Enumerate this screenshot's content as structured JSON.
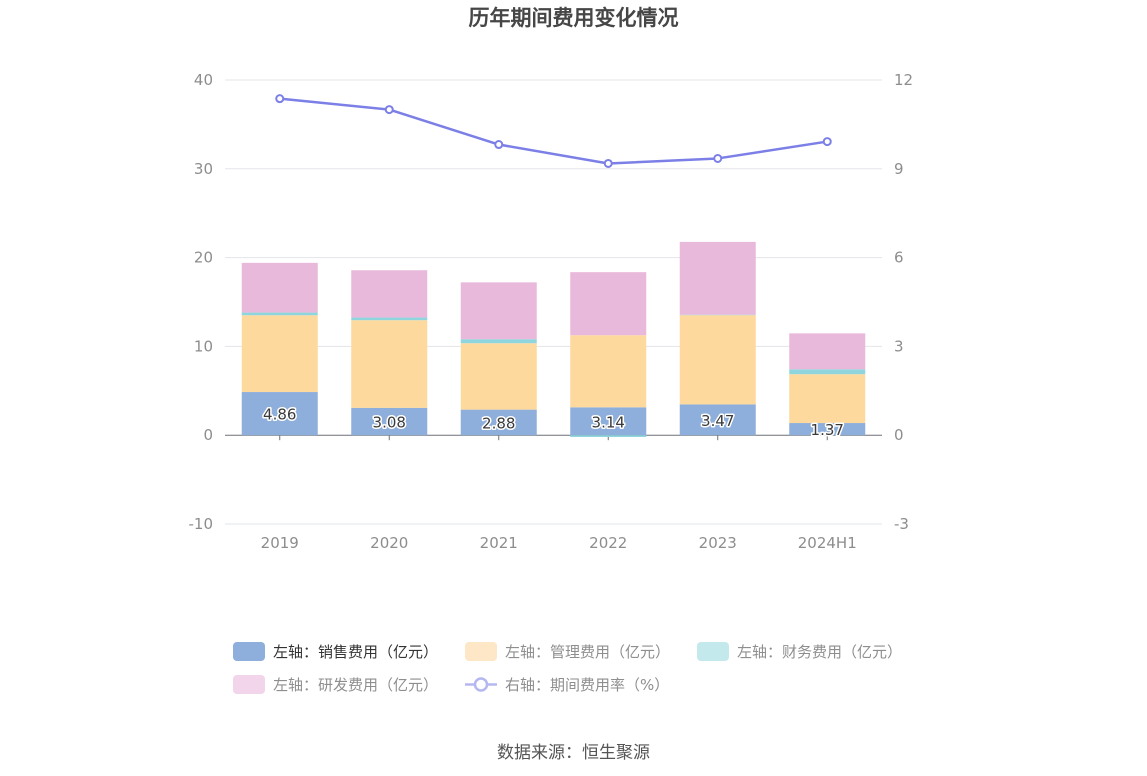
{
  "chart_data": {
    "type": "bar",
    "title": "历年期间费用变化情况",
    "categories": [
      "2019",
      "2020",
      "2021",
      "2022",
      "2023",
      "2024H1"
    ],
    "stacked": true,
    "grid": true,
    "legend_position": "bottom",
    "left_axis": {
      "min": -10,
      "max": 40,
      "ticks": [
        -10,
        0,
        10,
        20,
        30,
        40
      ]
    },
    "right_axis": {
      "min": -3,
      "max": 12,
      "ticks": [
        -3,
        0,
        3,
        6,
        9,
        12
      ]
    },
    "series": [
      {
        "name": "左轴：销售费用（亿元）",
        "type": "bar",
        "axis": "left",
        "color": "#8eaedb",
        "data_labels": true,
        "values": [
          4.86,
          3.08,
          2.88,
          3.14,
          3.47,
          1.37
        ]
      },
      {
        "name": "左轴：管理费用（亿元）",
        "type": "bar",
        "axis": "left",
        "color": "#fdd99e",
        "values": [
          8.65,
          9.87,
          7.48,
          8.12,
          10.05,
          5.5
        ]
      },
      {
        "name": "左轴：财务费用（亿元）",
        "type": "bar",
        "axis": "left",
        "color": "#8fd5dd",
        "values": [
          0.3,
          0.3,
          0.45,
          -0.2,
          0.05,
          0.55
        ]
      },
      {
        "name": "左轴：研发费用（亿元）",
        "type": "bar",
        "axis": "left",
        "color": "#e8b9da",
        "values": [
          5.6,
          5.33,
          6.4,
          7.1,
          8.2,
          4.05
        ]
      },
      {
        "name": "右轴：期间费用率（%）",
        "type": "line",
        "axis": "right",
        "color": "#7b7fe6",
        "values": [
          11.37,
          11.0,
          9.82,
          9.18,
          9.35,
          9.92
        ]
      }
    ]
  },
  "source": "数据来源：恒生聚源"
}
